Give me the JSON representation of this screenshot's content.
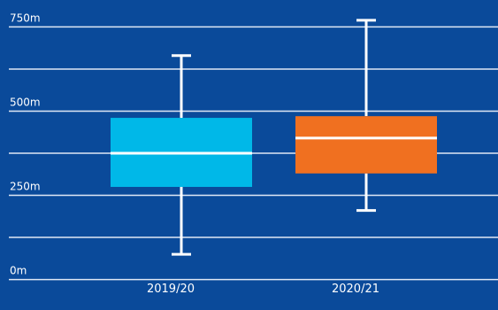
{
  "chart_data": {
    "type": "box",
    "categories": [
      "2019/20",
      "2020/21"
    ],
    "series": [
      {
        "category": "2019/20",
        "color": "#00b8e8",
        "min": 75,
        "q1": 275,
        "median": 375,
        "q3": 480,
        "max": 665
      },
      {
        "category": "2020/21",
        "color": "#f07020",
        "min": 205,
        "q1": 315,
        "median": 420,
        "q3": 485,
        "max": 770
      }
    ],
    "y_ticks": [
      {
        "value": 750,
        "label": "750m"
      },
      {
        "value": 500,
        "label": "500m"
      },
      {
        "value": 250,
        "label": "250m"
      },
      {
        "value": 0,
        "label": "0m"
      }
    ],
    "ylim": [
      -80,
      830
    ],
    "grid": true,
    "colors": {
      "background": "#0a4a9a",
      "grid": "#dfe8f5",
      "whisker": "#ffffff",
      "median": "#ffffff",
      "text": "#ffffff"
    }
  }
}
